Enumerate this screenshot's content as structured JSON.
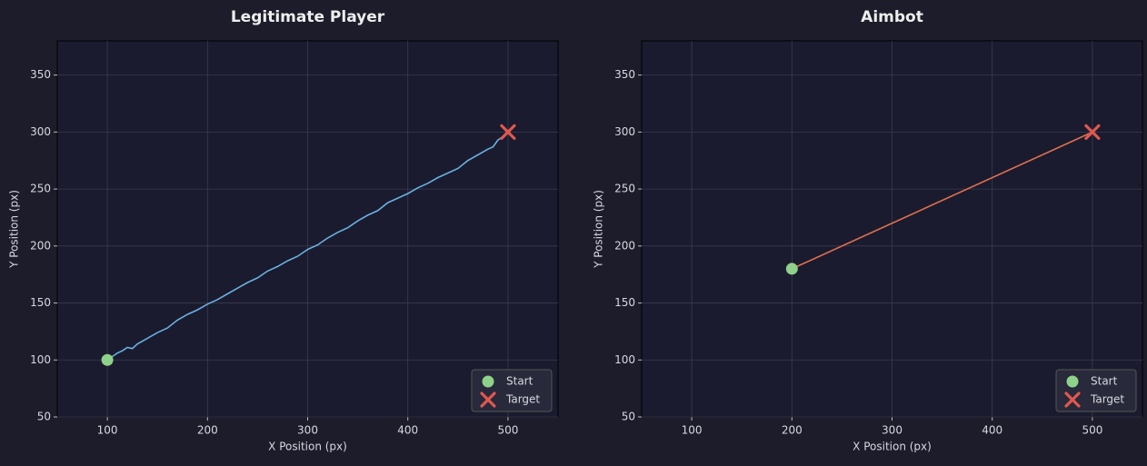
{
  "chart_data": [
    {
      "type": "line",
      "title": "Legitimate Player",
      "xlabel": "X Position (px)",
      "ylabel": "Y Position (px)",
      "xlim": [
        50,
        550
      ],
      "ylim": [
        50,
        380
      ],
      "xticks": [
        100,
        200,
        300,
        400,
        500
      ],
      "yticks": [
        50,
        100,
        150,
        200,
        250,
        300,
        350
      ],
      "grid": true,
      "legend_loc": "lower right",
      "path": {
        "color": "#6ab0e0",
        "x": [
          100,
          105,
          110,
          115,
          120,
          125,
          130,
          140,
          150,
          160,
          170,
          180,
          190,
          200,
          210,
          220,
          230,
          240,
          250,
          260,
          270,
          280,
          290,
          300,
          310,
          320,
          330,
          340,
          350,
          360,
          370,
          380,
          390,
          400,
          410,
          420,
          430,
          440,
          450,
          460,
          470,
          480,
          485,
          490,
          495,
          500
        ],
        "y": [
          100,
          103,
          106,
          108,
          111,
          110,
          114,
          119,
          124,
          128,
          135,
          140,
          144,
          149,
          153,
          158,
          163,
          168,
          172,
          178,
          182,
          187,
          191,
          197,
          201,
          207,
          212,
          216,
          222,
          227,
          231,
          238,
          242,
          246,
          251,
          255,
          260,
          264,
          268,
          275,
          280,
          285,
          287,
          293,
          296,
          300
        ]
      },
      "markers": [
        {
          "name": "Start",
          "x": 100,
          "y": 100,
          "color": "#8fd18a",
          "shape": "circle"
        },
        {
          "name": "Target",
          "x": 500,
          "y": 300,
          "color": "#e0584f",
          "shape": "x"
        }
      ]
    },
    {
      "type": "line",
      "title": "Aimbot",
      "xlabel": "X Position (px)",
      "ylabel": "Y Position (px)",
      "xlim": [
        50,
        550
      ],
      "ylim": [
        50,
        380
      ],
      "xticks": [
        100,
        200,
        300,
        400,
        500
      ],
      "yticks": [
        50,
        100,
        150,
        200,
        250,
        300,
        350
      ],
      "grid": true,
      "legend_loc": "lower right",
      "path": {
        "color": "#e07050",
        "x": [
          200,
          500
        ],
        "y": [
          180,
          300
        ]
      },
      "markers": [
        {
          "name": "Start",
          "x": 200,
          "y": 180,
          "color": "#8fd18a",
          "shape": "circle"
        },
        {
          "name": "Target",
          "x": 500,
          "y": 300,
          "color": "#e0584f",
          "shape": "x"
        }
      ]
    }
  ]
}
